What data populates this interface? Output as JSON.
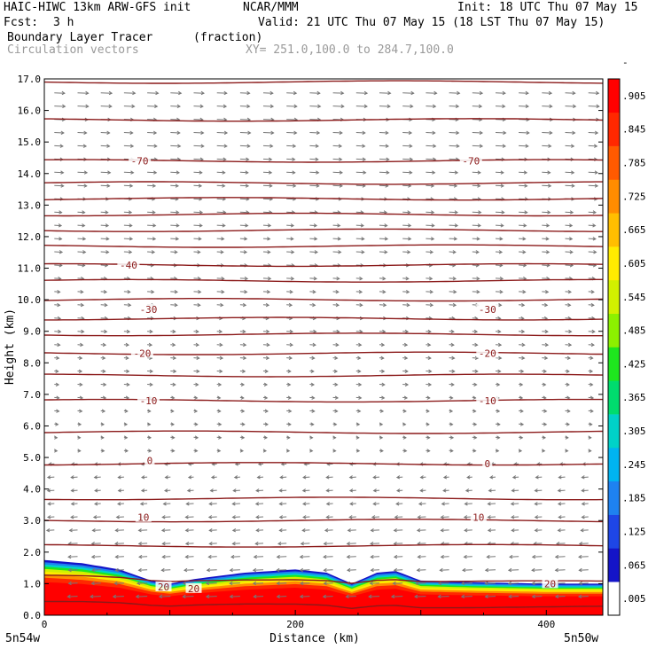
{
  "header": {
    "model_line": "HAIC-HIWC 13km ARW-GFS init",
    "org": "NCAR/MMM",
    "init": "Init: 18 UTC Thu 07 May 15",
    "fcst_label": "Fcst:",
    "fcst_value": "3 h",
    "valid": "Valid: 21 UTC Thu 07 May 15 (18 LST Thu 07 May 15)",
    "field": "Boundary Layer Tracer",
    "units": "(fraction)",
    "vectors": "Circulation vectors",
    "xy": "XY= 251.0,100.0 to 284.7,100.0"
  },
  "colors": {
    "contour": "#8b1a1a",
    "vector": "#777777",
    "colorbar": [
      "#ffffff",
      "#1414c8",
      "#1e46e6",
      "#1e82f0",
      "#00b4f0",
      "#00d2c8",
      "#00dc6e",
      "#1ee61e",
      "#8cf000",
      "#d2f000",
      "#ffeb00",
      "#ffbe00",
      "#ff8c00",
      "#ff5a00",
      "#ff2800",
      "#ff0000"
    ]
  },
  "chart_data": {
    "type": "cross-section",
    "xlabel": "Distance (km)",
    "ylabel": "Height (km)",
    "xlim": [
      0,
      445
    ],
    "ylim": [
      0,
      17
    ],
    "x_ticks": [
      0,
      200,
      400
    ],
    "x_tick_labels": [
      "0",
      "200",
      "400"
    ],
    "y_ticks": [
      0,
      1,
      2,
      3,
      4,
      5,
      6,
      7,
      8,
      9,
      10,
      11,
      12,
      13,
      14,
      15,
      16,
      17
    ],
    "y_tick_labels": [
      "0.0",
      "1.0",
      "2.0",
      "3.0",
      "4.0",
      "5.0",
      "6.0",
      "7.0",
      "8.0",
      "9.0",
      "10.0",
      "11.0",
      "12.0",
      "13.0",
      "14.0",
      "15.0",
      "16.0",
      "17.0"
    ],
    "endpoint_labels": [
      "5n54w",
      "5n50w"
    ],
    "colorbar_levels": [
      ".005",
      ".065",
      ".125",
      ".185",
      ".245",
      ".305",
      ".365",
      ".425",
      ".485",
      ".545",
      ".605",
      ".665",
      ".725",
      ".785",
      ".845",
      ".905",
      "-"
    ],
    "contour_heights_km": [
      0.3,
      1.1,
      2.2,
      3.0,
      3.7,
      4.8,
      5.8,
      6.8,
      7.6,
      8.3,
      8.9,
      9.4,
      10.0,
      10.6,
      11.1,
      11.7,
      12.2,
      12.7,
      13.2,
      13.7,
      14.4,
      15.7,
      16.9
    ],
    "contour_labels": [
      {
        "text": "-70",
        "x": 76,
        "y": 14.4
      },
      {
        "text": "-70",
        "x": 340,
        "y": 14.4
      },
      {
        "text": "-40",
        "x": 67,
        "y": 11.1
      },
      {
        "text": "-30",
        "x": 83,
        "y": 9.7
      },
      {
        "text": "-30",
        "x": 353,
        "y": 9.7
      },
      {
        "text": "-20",
        "x": 78,
        "y": 8.3
      },
      {
        "text": "-20",
        "x": 353,
        "y": 8.3
      },
      {
        "text": "-10",
        "x": 83,
        "y": 6.8
      },
      {
        "text": "-10",
        "x": 353,
        "y": 6.8
      },
      {
        "text": "0",
        "x": 84,
        "y": 4.9
      },
      {
        "text": "0",
        "x": 353,
        "y": 4.8
      },
      {
        "text": "10",
        "x": 79,
        "y": 3.1
      },
      {
        "text": "10",
        "x": 346,
        "y": 3.1
      },
      {
        "text": "20",
        "x": 95,
        "y": 0.9
      },
      {
        "text": "20",
        "x": 119,
        "y": 0.85
      },
      {
        "text": "20",
        "x": 403,
        "y": 1.0
      }
    ],
    "tracer_top_km": [
      [
        0,
        1.75
      ],
      [
        30,
        1.65
      ],
      [
        60,
        1.45
      ],
      [
        85,
        1.1
      ],
      [
        100,
        1.0
      ],
      [
        120,
        1.15
      ],
      [
        160,
        1.35
      ],
      [
        200,
        1.45
      ],
      [
        225,
        1.35
      ],
      [
        245,
        1.0
      ],
      [
        265,
        1.35
      ],
      [
        280,
        1.4
      ],
      [
        300,
        1.1
      ],
      [
        340,
        1.05
      ],
      [
        400,
        1.0
      ],
      [
        445,
        1.0
      ]
    ]
  }
}
